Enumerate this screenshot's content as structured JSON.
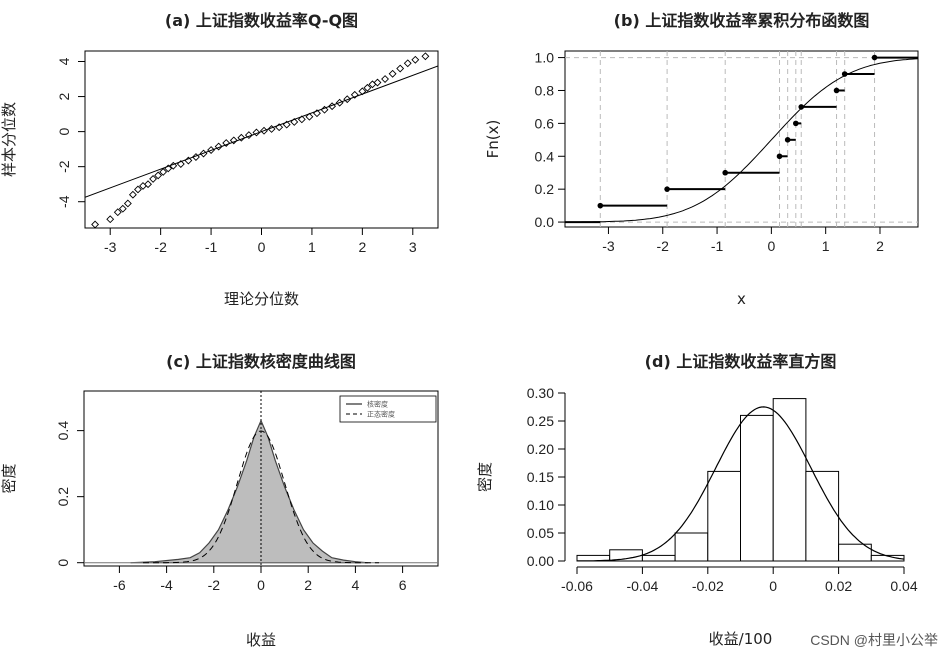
{
  "watermark": "CSDN @村里小公举",
  "chart_data": [
    {
      "id": "a",
      "type": "scatter",
      "title": "(a) 上证指数收益率Q-Q图",
      "xlabel": "理论分位数",
      "ylabel": "样本分位数",
      "xlim": [
        -3.5,
        3.5
      ],
      "ylim": [
        -5.5,
        4.6
      ],
      "xticks": [
        -3,
        -2,
        -1,
        0,
        1,
        2,
        3
      ],
      "yticks": [
        -4,
        -2,
        0,
        2,
        4
      ],
      "qq_points": [
        [
          -3.3,
          -5.3
        ],
        [
          -3.0,
          -5.0
        ],
        [
          -2.85,
          -4.6
        ],
        [
          -2.75,
          -4.4
        ],
        [
          -2.65,
          -4.1
        ],
        [
          -2.55,
          -3.6
        ],
        [
          -2.45,
          -3.3
        ],
        [
          -2.35,
          -3.1
        ],
        [
          -2.25,
          -3.0
        ],
        [
          -2.15,
          -2.7
        ],
        [
          -2.05,
          -2.5
        ],
        [
          -1.95,
          -2.3
        ],
        [
          -1.85,
          -2.1
        ],
        [
          -1.75,
          -1.95
        ],
        [
          -1.6,
          -1.85
        ],
        [
          -1.45,
          -1.65
        ],
        [
          -1.3,
          -1.45
        ],
        [
          -1.15,
          -1.25
        ],
        [
          -1.0,
          -1.05
        ],
        [
          -0.85,
          -0.85
        ],
        [
          -0.7,
          -0.65
        ],
        [
          -0.55,
          -0.5
        ],
        [
          -0.4,
          -0.35
        ],
        [
          -0.25,
          -0.2
        ],
        [
          -0.1,
          -0.05
        ],
        [
          0.05,
          0.05
        ],
        [
          0.2,
          0.15
        ],
        [
          0.35,
          0.25
        ],
        [
          0.5,
          0.4
        ],
        [
          0.65,
          0.55
        ],
        [
          0.8,
          0.7
        ],
        [
          0.95,
          0.85
        ],
        [
          1.1,
          1.05
        ],
        [
          1.25,
          1.25
        ],
        [
          1.4,
          1.45
        ],
        [
          1.55,
          1.65
        ],
        [
          1.7,
          1.85
        ],
        [
          1.85,
          2.1
        ],
        [
          2.0,
          2.3
        ],
        [
          2.1,
          2.5
        ],
        [
          2.2,
          2.7
        ],
        [
          2.3,
          2.8
        ],
        [
          2.45,
          3.0
        ],
        [
          2.6,
          3.3
        ],
        [
          2.75,
          3.6
        ],
        [
          2.9,
          3.9
        ],
        [
          3.05,
          4.1
        ],
        [
          3.25,
          4.3
        ]
      ],
      "reference_line": {
        "intercept": 0.0,
        "slope": 1.07
      }
    },
    {
      "id": "b",
      "type": "line",
      "title": "(b) 上证指数收益率累积分布函数图",
      "xlabel": "x",
      "ylabel": "Fn(x)",
      "xlim": [
        -3.8,
        2.7
      ],
      "ylim": [
        -0.03,
        1.04
      ],
      "xticks": [
        -3,
        -2,
        -1,
        0,
        1,
        2
      ],
      "yticks": [
        0.0,
        0.2,
        0.4,
        0.6,
        0.8,
        1.0
      ],
      "ecdf_x": [
        -3.15,
        -1.92,
        -0.85,
        0.15,
        0.3,
        0.45,
        0.55,
        1.2,
        1.35,
        1.9
      ],
      "ecdf_y": [
        0.1,
        0.2,
        0.3,
        0.4,
        0.5,
        0.6,
        0.7,
        0.8,
        0.9,
        1.0
      ],
      "normal_cdf": {
        "mean": 0,
        "sd": 1.1
      }
    },
    {
      "id": "c",
      "type": "area",
      "title": "(c) 上证指数核密度曲线图",
      "xlabel": "收益",
      "ylabel": "密度",
      "xlim": [
        -7.5,
        7.5
      ],
      "ylim": [
        -0.01,
        0.52
      ],
      "xticks": [
        -6,
        -4,
        -2,
        0,
        2,
        4,
        6
      ],
      "yticks": [
        0.0,
        0.2,
        0.4
      ],
      "legend": [
        "核密度",
        "正态密度"
      ],
      "legend_position": "top-right",
      "kde_x": [
        -5.5,
        -4.5,
        -3.5,
        -3.0,
        -2.6,
        -2.2,
        -1.8,
        -1.4,
        -1.0,
        -0.6,
        -0.3,
        0.0,
        0.3,
        0.6,
        1.0,
        1.4,
        1.8,
        2.2,
        2.6,
        3.0,
        3.5,
        4.0,
        4.5
      ],
      "kde_y": [
        0.0,
        0.003,
        0.01,
        0.015,
        0.03,
        0.06,
        0.1,
        0.16,
        0.23,
        0.31,
        0.38,
        0.43,
        0.38,
        0.31,
        0.23,
        0.16,
        0.1,
        0.06,
        0.035,
        0.015,
        0.008,
        0.003,
        0.0
      ],
      "normal_density": {
        "mean": 0,
        "sd": 1.0
      }
    },
    {
      "id": "d",
      "type": "bar",
      "title": "(d) 上证指数收益率直方图",
      "xlabel": "收益/100",
      "ylabel": "密度",
      "xlim": [
        -0.06,
        0.04
      ],
      "ylim": [
        0,
        0.3
      ],
      "xticks": [
        -0.06,
        -0.04,
        -0.02,
        0,
        0.02,
        0.04
      ],
      "yticks": [
        0.0,
        0.05,
        0.1,
        0.15,
        0.2,
        0.25,
        0.3
      ],
      "bin_edges": [
        -0.06,
        -0.05,
        -0.04,
        -0.03,
        -0.02,
        -0.01,
        0.0,
        0.01,
        0.02,
        0.03,
        0.04
      ],
      "values": [
        0.01,
        0.02,
        0.01,
        0.05,
        0.16,
        0.26,
        0.29,
        0.16,
        0.03,
        0.01
      ],
      "normal_curve": {
        "mean": -0.003,
        "sd": 0.0145
      }
    }
  ]
}
